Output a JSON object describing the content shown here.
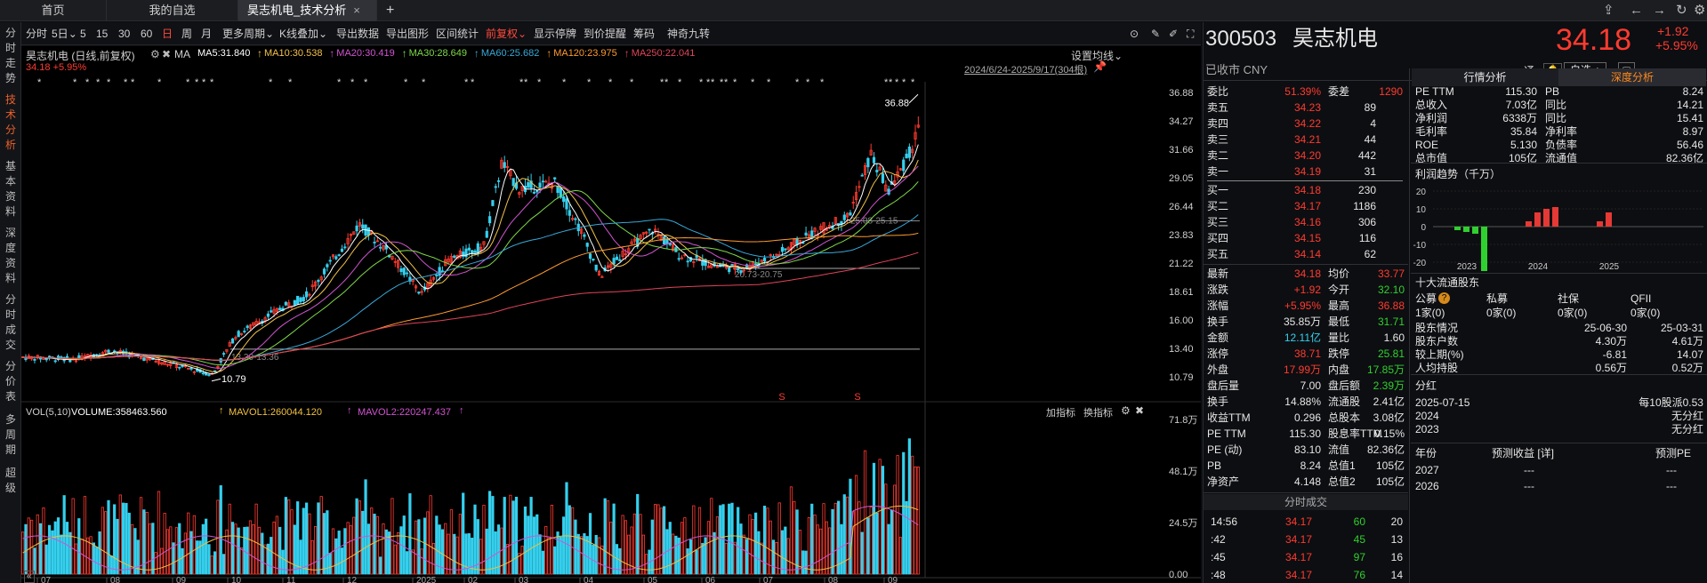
{
  "tabs": [
    "首页",
    "我的自选",
    "昊志机电_技术分析"
  ],
  "tab_close": "×",
  "tab_add": "+",
  "left_nav": [
    "分时走势",
    "技术分析",
    "基本资料",
    "深度资料",
    "分时成交",
    "分价表",
    "多周期",
    "超级"
  ],
  "toolbar": {
    "periods": [
      "分时",
      "5日",
      "5",
      "15",
      "30",
      "60",
      "日",
      "周",
      "月"
    ],
    "period_dropdown": "5日",
    "active_period": "日",
    "items": [
      "更多周期",
      "K线叠加",
      "导出数据",
      "导出图形",
      "区间统计",
      "前复权",
      "显示停牌",
      "到价提醒",
      "筹码",
      "神奇九转"
    ],
    "active_item": "前复权"
  },
  "kline": {
    "title": "昊志机电 (日线,前复权)",
    "ma_label": "MA",
    "ma": [
      {
        "label": "MA5:31.840",
        "color": "#ffffff"
      },
      {
        "label": "MA10:30.538",
        "color": "#f2c14a"
      },
      {
        "label": "MA20:30.419",
        "color": "#d154d1"
      },
      {
        "label": "MA30:28.649",
        "color": "#7fd84a"
      },
      {
        "label": "MA60:25.682",
        "color": "#38a8d8"
      },
      {
        "label": "MA120:23.975",
        "color": "#ff9a2e"
      },
      {
        "label": "MA250:22.041",
        "color": "#e0445a"
      }
    ],
    "setting": "设置均线",
    "price_change": "34.18 +5.95%",
    "date_range": "2024/6/24-2025/9/17(304根)",
    "y_ticks": [
      "36.88",
      "34.27",
      "31.66",
      "29.05",
      "26.44",
      "23.83",
      "21.22",
      "18.61",
      "16.00",
      "13.40",
      "10.79"
    ],
    "annotations": {
      "high": "36.88",
      "low": "10.79",
      "r1": "13.30-13.36",
      "r2": "20.73-20.75",
      "r3": "25.08-25.15"
    },
    "marker": "S"
  },
  "volume": {
    "title": "VOL(5,10)",
    "volume": "VOLUME:358463.560",
    "mavol1": "MAVOL1:260044.120",
    "mavol2": "MAVOL2:220247.437",
    "actions": [
      "加指标",
      "换指标"
    ],
    "y_ticks": [
      "71.8万",
      "48.1万",
      "24.5万",
      "0.00"
    ]
  },
  "x_axis": [
    "07",
    "08",
    "09",
    "10",
    "11",
    "12",
    "2025",
    "02",
    "03",
    "04",
    "05",
    "06",
    "07",
    "08",
    "09"
  ],
  "quote": {
    "code": "300503",
    "name": "昊志机电",
    "price": "34.18",
    "change": "+1.92",
    "change_pct": "+5.95%",
    "status": "已收市 CNY",
    "tong": "通",
    "watch": "自选 +",
    "webi": {
      "label": "委比",
      "value": "51.39%",
      "label2": "委差",
      "value2": "1290"
    },
    "asks": [
      [
        "卖五",
        "34.23",
        "89"
      ],
      [
        "卖四",
        "34.22",
        "4"
      ],
      [
        "卖三",
        "34.21",
        "44"
      ],
      [
        "卖二",
        "34.20",
        "442"
      ],
      [
        "卖一",
        "34.19",
        "31"
      ]
    ],
    "bids": [
      [
        "买一",
        "34.18",
        "230"
      ],
      [
        "买二",
        "34.17",
        "1186"
      ],
      [
        "买三",
        "34.16",
        "306"
      ],
      [
        "买四",
        "34.15",
        "116"
      ],
      [
        "买五",
        "34.14",
        "62"
      ]
    ],
    "stats": [
      [
        [
          "最新",
          "34.18",
          "red"
        ],
        [
          "均价",
          "33.77",
          "red"
        ]
      ],
      [
        [
          "涨跌",
          "+1.92",
          "red"
        ],
        [
          "今开",
          "32.10",
          "green"
        ]
      ],
      [
        [
          "涨幅",
          "+5.95%",
          "red"
        ],
        [
          "最高",
          "36.88",
          "red"
        ]
      ],
      [
        [
          "换手",
          "35.85万",
          "white"
        ],
        [
          "最低",
          "31.71",
          "green"
        ]
      ],
      [
        [
          "金额",
          "12.11亿",
          "cyan"
        ],
        [
          "量比",
          "1.60",
          "white"
        ]
      ],
      [
        [
          "涨停",
          "38.71",
          "red"
        ],
        [
          "跌停",
          "25.81",
          "green"
        ]
      ],
      [
        [
          "外盘",
          "17.99万",
          "red"
        ],
        [
          "内盘",
          "17.85万",
          "green"
        ]
      ],
      [
        [
          "盘后量",
          "7.00",
          "white"
        ],
        [
          "盘后额",
          "2.39万",
          "green"
        ]
      ],
      [
        [
          "换手",
          "14.88%",
          "white"
        ],
        [
          "流通股",
          "2.41亿",
          "white"
        ]
      ],
      [
        [
          "收益TTM",
          "0.296",
          "white"
        ],
        [
          "总股本",
          "3.08亿",
          "white"
        ]
      ],
      [
        [
          "PE TTM",
          "115.30",
          "white"
        ],
        [
          "股息率TTM",
          "0.15%",
          "white"
        ]
      ],
      [
        [
          "PE (动)",
          "83.10",
          "white"
        ],
        [
          "流值",
          "82.36亿",
          "white"
        ]
      ],
      [
        [
          "PB",
          "8.24",
          "white"
        ],
        [
          "总值1",
          "105亿",
          "white"
        ]
      ],
      [
        [
          "净资产",
          "4.148",
          "white"
        ],
        [
          "总值2",
          "105亿",
          "white"
        ]
      ]
    ],
    "trades_title": "分时成交",
    "trades": [
      [
        "14:56",
        "34.17",
        "60",
        "20"
      ],
      [
        ":42",
        "34.17",
        "45",
        "13"
      ],
      [
        ":45",
        "34.17",
        "97",
        "16"
      ],
      [
        ":48",
        "34.17",
        "76",
        "14"
      ]
    ]
  },
  "analysis": {
    "tabs": [
      "行情分析",
      "深度分析"
    ],
    "metrics": [
      [
        "PE TTM",
        "115.30",
        "PB",
        "8.24"
      ],
      [
        "总收入",
        "7.03亿",
        "同比",
        "14.21"
      ],
      [
        "净利润",
        "6338万",
        "同比",
        "15.41"
      ],
      [
        "毛利率",
        "35.84",
        "净利率",
        "8.97"
      ],
      [
        "ROE",
        "5.130",
        "负债率",
        "56.46"
      ],
      [
        "总市值",
        "105亿",
        "流通值",
        "82.36亿"
      ]
    ],
    "profit_title": "利润趋势（千万）",
    "profit_y": [
      "20",
      "10",
      "0",
      "-10",
      "-20"
    ],
    "profit_years": [
      "2023",
      "2024",
      "2025"
    ],
    "profit_data": [
      {
        "year": "2023",
        "q": [
          -2,
          -3,
          -4,
          -25
        ]
      },
      {
        "year": "2024",
        "q": [
          3,
          8,
          10,
          11
        ]
      },
      {
        "year": "2025",
        "q": [
          3,
          8
        ]
      }
    ],
    "holders_title": "十大流通股东",
    "holders_header": [
      "公募",
      "私募",
      "社保",
      "QFII"
    ],
    "holders_help": "?",
    "holders_vals": [
      "1家(0)",
      "0家(0)",
      "0家(0)",
      "0家(0)"
    ],
    "holder_rows": [
      [
        "股东情况",
        "25-06-30",
        "25-03-31"
      ],
      [
        "股东户数",
        "4.30万",
        "4.61万"
      ],
      [
        "较上期(%)",
        "-6.81",
        "14.07"
      ],
      [
        "人均持股",
        "0.56万",
        "0.52万"
      ]
    ],
    "dividend_title": "分红",
    "dividend_rows": [
      [
        "2025-07-15",
        "每10股派0.53"
      ],
      [
        "2024",
        "无分红"
      ],
      [
        "2023",
        "无分红"
      ]
    ],
    "forecast_header": [
      "年份",
      "预测收益 [详]",
      "预测PE"
    ],
    "forecast_rows": [
      [
        "2027",
        "---",
        "---"
      ],
      [
        "2026",
        "---",
        "---"
      ]
    ]
  },
  "colors": {
    "up": "#ff3b30",
    "down": "#2fd12f",
    "cyan": "#35d0ee",
    "accent": "#e8612a"
  }
}
